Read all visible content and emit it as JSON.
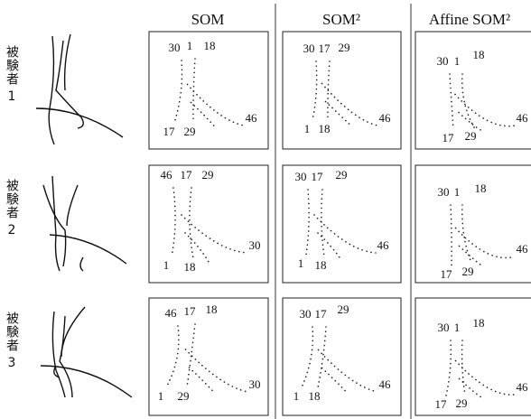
{
  "columns": [
    "SOM",
    "SOM²",
    "Affine SOM²"
  ],
  "rows": [
    {
      "subject": {
        "label": "被験者",
        "number": "1"
      },
      "panels": [
        {
          "labels": [
            "30",
            "1",
            "18",
            "17",
            "29",
            "46"
          ]
        },
        {
          "labels": [
            "30",
            "17",
            "29",
            "1",
            "18",
            "46"
          ]
        },
        {
          "labels": [
            "30",
            "1",
            "18",
            "17",
            "29",
            "46"
          ]
        }
      ]
    },
    {
      "subject": {
        "label": "被験者",
        "number": "2"
      },
      "panels": [
        {
          "labels": [
            "46",
            "17",
            "29",
            "1",
            "18",
            "30"
          ]
        },
        {
          "labels": [
            "30",
            "17",
            "29",
            "1",
            "18",
            "46"
          ]
        },
        {
          "labels": [
            "30",
            "1",
            "18",
            "17",
            "29",
            "46"
          ]
        }
      ]
    },
    {
      "subject": {
        "label": "被験者",
        "number": "3"
      },
      "panels": [
        {
          "labels": [
            "46",
            "17",
            "18",
            "1",
            "29",
            "30"
          ]
        },
        {
          "labels": [
            "30",
            "17",
            "29",
            "1",
            "18",
            "46"
          ]
        },
        {
          "labels": [
            "30",
            "1",
            "18",
            "17",
            "29",
            "46"
          ]
        }
      ]
    }
  ]
}
